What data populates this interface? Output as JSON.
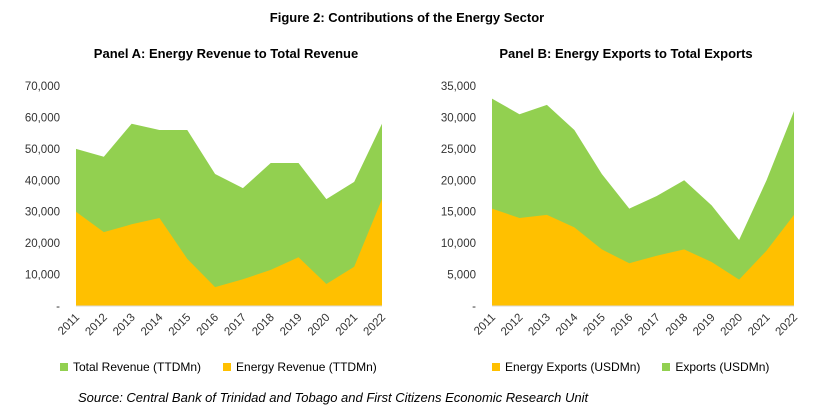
{
  "figure_title": "Figure 2: Contributions of the Energy Sector",
  "source": "Source: Central Bank of Trinidad and Tobago and First Citizens Economic Research Unit",
  "colors": {
    "green": "#92D050",
    "orange": "#FFC000"
  },
  "chart_data": [
    {
      "type": "area",
      "title": "Panel A: Energy Revenue to Total Revenue",
      "x": [
        "2011",
        "2012",
        "2013",
        "2014",
        "2015",
        "2016",
        "2017",
        "2018",
        "2019",
        "2020",
        "2021",
        "2022"
      ],
      "ylim": [
        0,
        70000
      ],
      "yticks": [
        "-",
        "10,000",
        "20,000",
        "30,000",
        "40,000",
        "50,000",
        "60,000",
        "70,000"
      ],
      "legend_position": "bottom",
      "series": [
        {
          "name": "Total Revenue (TTDMn)",
          "color": "#92D050",
          "values": [
            50000,
            47500,
            58000,
            56000,
            56000,
            42000,
            37500,
            45500,
            45500,
            34000,
            39500,
            58000
          ]
        },
        {
          "name": "Energy Revenue (TTDMn)",
          "color": "#FFC000",
          "values": [
            30000,
            23500,
            26000,
            28000,
            15000,
            6000,
            8500,
            11500,
            15500,
            7000,
            12500,
            34000
          ]
        }
      ]
    },
    {
      "type": "area",
      "title": "Panel B: Energy Exports to Total Exports",
      "x": [
        "2011",
        "2012",
        "2013",
        "2014",
        "2015",
        "2016",
        "2017",
        "2018",
        "2019",
        "2020",
        "2021",
        "2022"
      ],
      "ylim": [
        0,
        35000
      ],
      "yticks": [
        "-",
        "5,000",
        "10,000",
        "15,000",
        "20,000",
        "25,000",
        "30,000",
        "35,000"
      ],
      "legend_position": "bottom",
      "series": [
        {
          "name": "Energy Exports (USDMn)",
          "color": "#FFC000",
          "values": [
            15500,
            14000,
            14500,
            12500,
            9000,
            6800,
            8000,
            9000,
            7000,
            4200,
            8800,
            14500
          ]
        },
        {
          "name": "Exports (USDMn)",
          "color": "#92D050",
          "values": [
            33000,
            30500,
            32000,
            28000,
            21000,
            15500,
            17500,
            20000,
            16000,
            10500,
            20000,
            31000
          ]
        }
      ]
    }
  ]
}
